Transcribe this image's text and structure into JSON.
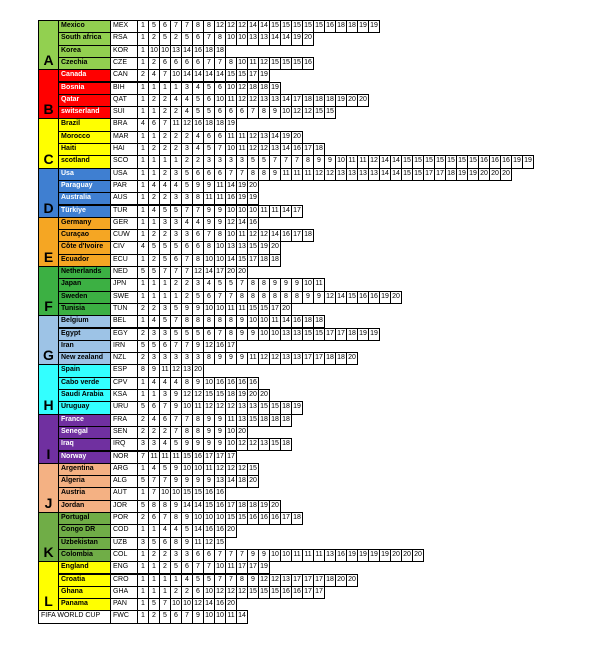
{
  "groups": [
    {
      "label": "A",
      "color": "#92d050",
      "rows": [
        {
          "name": "Mexico",
          "code": "MEX",
          "values": [
            1,
            5,
            6,
            7,
            7,
            8,
            8,
            12,
            12,
            12,
            14,
            14,
            15,
            15,
            15,
            15,
            15,
            16,
            18,
            18,
            19,
            19
          ]
        },
        {
          "name": "South africa",
          "code": "RSA",
          "values": [
            1,
            2,
            5,
            2,
            5,
            6,
            7,
            8,
            10,
            10,
            13,
            13,
            14,
            14,
            19,
            20
          ]
        },
        {
          "name": "Korea",
          "code": "KOR",
          "values": [
            1,
            10,
            10,
            13,
            14,
            16,
            18,
            18
          ]
        },
        {
          "name": "Czechia",
          "code": "CZE",
          "values": [
            1,
            2,
            6,
            6,
            6,
            6,
            7,
            7,
            8,
            10,
            11,
            12,
            15,
            15,
            15,
            16
          ]
        }
      ]
    },
    {
      "label": "B",
      "color": "#ff0000",
      "rows": [
        {
          "name": "Canada",
          "code": "CAN",
          "values": [
            2,
            4,
            7,
            10,
            14,
            14,
            14,
            14,
            15,
            15,
            17,
            19
          ]
        },
        {
          "name": "Bosnia",
          "code": "BIH",
          "values": [
            1,
            1,
            1,
            1,
            3,
            4,
            5,
            6,
            10,
            12,
            18,
            18,
            19
          ]
        },
        {
          "name": "Qatar",
          "code": "QAT",
          "values": [
            1,
            2,
            2,
            4,
            4,
            5,
            6,
            10,
            11,
            12,
            12,
            13,
            13,
            14,
            17,
            18,
            18,
            18,
            19,
            20,
            20
          ]
        },
        {
          "name": "switserland",
          "code": "SUI",
          "values": [
            1,
            1,
            2,
            2,
            4,
            5,
            5,
            6,
            6,
            6,
            7,
            8,
            9,
            10,
            12,
            12,
            15,
            15
          ]
        }
      ]
    },
    {
      "label": "C",
      "color": "#ffff00",
      "rows": [
        {
          "name": "Brazil",
          "code": "BRA",
          "values": [
            4,
            6,
            7,
            11,
            12,
            16,
            18,
            18,
            19
          ]
        },
        {
          "name": "Morocco",
          "code": "MAR",
          "values": [
            1,
            1,
            2,
            2,
            2,
            4,
            6,
            6,
            11,
            11,
            12,
            13,
            14,
            19,
            20
          ]
        },
        {
          "name": "Haiti",
          "code": "HAI",
          "values": [
            1,
            2,
            2,
            2,
            3,
            4,
            5,
            7,
            10,
            11,
            12,
            12,
            13,
            14,
            16,
            17,
            18
          ]
        },
        {
          "name": "scotland",
          "code": "SCO",
          "values": [
            1,
            1,
            1,
            1,
            2,
            2,
            3,
            3,
            3,
            3,
            5,
            5,
            7,
            7,
            7,
            8,
            9,
            9,
            10,
            11,
            11,
            12,
            14,
            14,
            15,
            15,
            15,
            15,
            15,
            15,
            15,
            16,
            16,
            16,
            19,
            19
          ]
        }
      ]
    },
    {
      "label": "D",
      "color": "#3f7fd1",
      "rows": [
        {
          "name": "Usa",
          "code": "USA",
          "values": [
            1,
            1,
            2,
            3,
            5,
            6,
            6,
            6,
            7,
            7,
            8,
            8,
            9,
            11,
            11,
            11,
            12,
            12,
            13,
            13,
            13,
            13,
            14,
            14,
            15,
            15,
            17,
            17,
            18,
            19,
            19,
            20,
            20,
            20
          ]
        },
        {
          "name": "Paraguay",
          "code": "PAR",
          "values": [
            1,
            4,
            4,
            4,
            5,
            9,
            9,
            11,
            14,
            19,
            20
          ]
        },
        {
          "name": "Australia",
          "code": "AUS",
          "values": [
            1,
            2,
            2,
            3,
            3,
            8,
            11,
            11,
            16,
            19,
            19
          ]
        },
        {
          "name": "Türkiye",
          "code": "TUR",
          "values": [
            1,
            4,
            5,
            5,
            7,
            7,
            9,
            9,
            10,
            10,
            10,
            11,
            11,
            14,
            17
          ]
        }
      ]
    },
    {
      "label": "E",
      "color": "#f5a623",
      "rows": [
        {
          "name": "Germany",
          "code": "GER",
          "values": [
            1,
            1,
            3,
            3,
            4,
            4,
            9,
            9,
            12,
            14,
            16
          ]
        },
        {
          "name": "Curaçao",
          "code": "CUW",
          "values": [
            1,
            2,
            2,
            3,
            3,
            6,
            7,
            8,
            10,
            11,
            12,
            12,
            14,
            16,
            17,
            18
          ]
        },
        {
          "name": "Côte d'Ivoire",
          "code": "CIV",
          "values": [
            4,
            5,
            5,
            5,
            6,
            6,
            8,
            10,
            13,
            13,
            15,
            19,
            20
          ]
        },
        {
          "name": "Ecuador",
          "code": "ECU",
          "values": [
            1,
            2,
            5,
            6,
            7,
            8,
            10,
            10,
            14,
            15,
            17,
            18,
            18
          ]
        }
      ]
    },
    {
      "label": "F",
      "color": "#3cb043",
      "rows": [
        {
          "name": "Netherlands",
          "code": "NED",
          "values": [
            5,
            5,
            7,
            7,
            7,
            12,
            14,
            17,
            20,
            20
          ]
        },
        {
          "name": "Japan",
          "code": "JPN",
          "values": [
            1,
            1,
            1,
            2,
            2,
            3,
            4,
            5,
            5,
            7,
            8,
            8,
            9,
            9,
            9,
            10,
            11
          ]
        },
        {
          "name": "Sweden",
          "code": "SWE",
          "values": [
            1,
            1,
            1,
            1,
            2,
            5,
            6,
            7,
            7,
            8,
            8,
            8,
            8,
            8,
            8,
            9,
            9,
            12,
            14,
            15,
            16,
            16,
            19,
            20
          ]
        },
        {
          "name": "Tunisia",
          "code": "TUN",
          "values": [
            2,
            2,
            3,
            5,
            9,
            9,
            10,
            10,
            11,
            11,
            15,
            15,
            17,
            20
          ]
        }
      ]
    },
    {
      "label": "G",
      "color": "#9dc3e6",
      "rows": [
        {
          "name": "Belgium",
          "code": "BEL",
          "values": [
            1,
            4,
            5,
            7,
            8,
            8,
            8,
            8,
            8,
            9,
            10,
            10,
            11,
            14,
            16,
            18,
            18
          ]
        },
        {
          "name": "Egypt",
          "code": "EGY",
          "values": [
            2,
            3,
            3,
            5,
            5,
            5,
            6,
            7,
            8,
            9,
            9,
            10,
            10,
            13,
            13,
            15,
            15,
            17,
            17,
            18,
            19,
            19
          ]
        },
        {
          "name": "Iran",
          "code": "IRN",
          "values": [
            5,
            5,
            6,
            7,
            7,
            9,
            12,
            16,
            17
          ]
        },
        {
          "name": "New zealand",
          "code": "NZL",
          "values": [
            2,
            3,
            3,
            3,
            3,
            3,
            8,
            9,
            9,
            9,
            11,
            12,
            12,
            13,
            13,
            17,
            17,
            18,
            18,
            20
          ]
        }
      ]
    },
    {
      "label": "H",
      "color": "#33ffff",
      "rows": [
        {
          "name": "Spain",
          "code": "ESP",
          "values": [
            8,
            9,
            11,
            12,
            13,
            20
          ]
        },
        {
          "name": "Cabo verde",
          "code": "CPV",
          "values": [
            1,
            4,
            4,
            4,
            8,
            9,
            10,
            16,
            16,
            16,
            16
          ]
        },
        {
          "name": "Saudi Arabia",
          "code": "KSA",
          "values": [
            1,
            1,
            3,
            9,
            12,
            12,
            15,
            15,
            18,
            19,
            20,
            20
          ]
        },
        {
          "name": "Uruguay",
          "code": "URU",
          "values": [
            5,
            6,
            7,
            9,
            10,
            11,
            12,
            12,
            12,
            13,
            13,
            15,
            15,
            18,
            19
          ]
        }
      ]
    },
    {
      "label": "I",
      "color": "#7030a0",
      "rows": [
        {
          "name": "France",
          "code": "FRA",
          "values": [
            2,
            4,
            6,
            7,
            7,
            8,
            9,
            9,
            11,
            13,
            15,
            18,
            18,
            18
          ]
        },
        {
          "name": "Senegal",
          "code": "SEN",
          "values": [
            2,
            2,
            2,
            7,
            8,
            8,
            9,
            9,
            10,
            20
          ]
        },
        {
          "name": "Iraq",
          "code": "IRQ",
          "values": [
            3,
            3,
            4,
            5,
            9,
            9,
            9,
            9,
            10,
            12,
            12,
            13,
            15,
            18
          ]
        },
        {
          "name": "Norway",
          "code": "NOR",
          "values": [
            7,
            11,
            11,
            11,
            15,
            16,
            17,
            17,
            17
          ]
        }
      ]
    },
    {
      "label": "J",
      "color": "#f4b183",
      "rows": [
        {
          "name": "Argentina",
          "code": "ARG",
          "values": [
            1,
            4,
            5,
            9,
            10,
            10,
            11,
            12,
            12,
            12,
            15
          ]
        },
        {
          "name": "Algeria",
          "code": "ALG",
          "values": [
            5,
            7,
            7,
            9,
            9,
            9,
            9,
            13,
            14,
            18,
            20
          ]
        },
        {
          "name": "Austria",
          "code": "AUT",
          "values": [
            1,
            7,
            10,
            10,
            15,
            15,
            16,
            16
          ]
        },
        {
          "name": "Jordan",
          "code": "JOR",
          "values": [
            5,
            8,
            8,
            9,
            14,
            14,
            15,
            16,
            17,
            18,
            18,
            19,
            20
          ]
        }
      ]
    },
    {
      "label": "K",
      "color": "#70ad47",
      "rows": [
        {
          "name": "Portugal",
          "code": "POR",
          "values": [
            2,
            6,
            7,
            8,
            9,
            10,
            10,
            10,
            15,
            15,
            16,
            16,
            16,
            17,
            18
          ]
        },
        {
          "name": "Congo DR",
          "code": "COD",
          "values": [
            1,
            1,
            4,
            4,
            5,
            14,
            16,
            16,
            20
          ]
        },
        {
          "name": "Uzbekistan",
          "code": "UZB",
          "values": [
            3,
            5,
            6,
            8,
            9,
            11,
            12,
            15
          ]
        },
        {
          "name": "Colombia",
          "code": "COL",
          "values": [
            1,
            2,
            2,
            3,
            3,
            6,
            6,
            7,
            7,
            7,
            9,
            9,
            10,
            10,
            11,
            11,
            11,
            13,
            16,
            19,
            19,
            19,
            19,
            20,
            20,
            20
          ]
        }
      ]
    },
    {
      "label": "L",
      "color": "#ffff00",
      "rows": [
        {
          "name": "England",
          "code": "ENG",
          "values": [
            1,
            1,
            2,
            5,
            6,
            7,
            7,
            10,
            11,
            17,
            17,
            19
          ]
        },
        {
          "name": "Croatia",
          "code": "CRO",
          "values": [
            1,
            1,
            1,
            1,
            4,
            5,
            5,
            7,
            7,
            8,
            9,
            12,
            12,
            13,
            17,
            17,
            17,
            18,
            20,
            20
          ]
        },
        {
          "name": "Ghana",
          "code": "GHA",
          "values": [
            1,
            1,
            1,
            2,
            2,
            6,
            10,
            12,
            12,
            12,
            15,
            15,
            15,
            16,
            16,
            17,
            17
          ]
        },
        {
          "name": "Panama",
          "code": "PAN",
          "values": [
            1,
            5,
            7,
            10,
            10,
            12,
            14,
            16,
            20
          ]
        }
      ]
    }
  ],
  "footer": {
    "name": "FIFA WORLD CUP",
    "code": "FWC",
    "values": [
      1,
      2,
      5,
      6,
      7,
      9,
      10,
      10,
      11,
      14
    ]
  }
}
